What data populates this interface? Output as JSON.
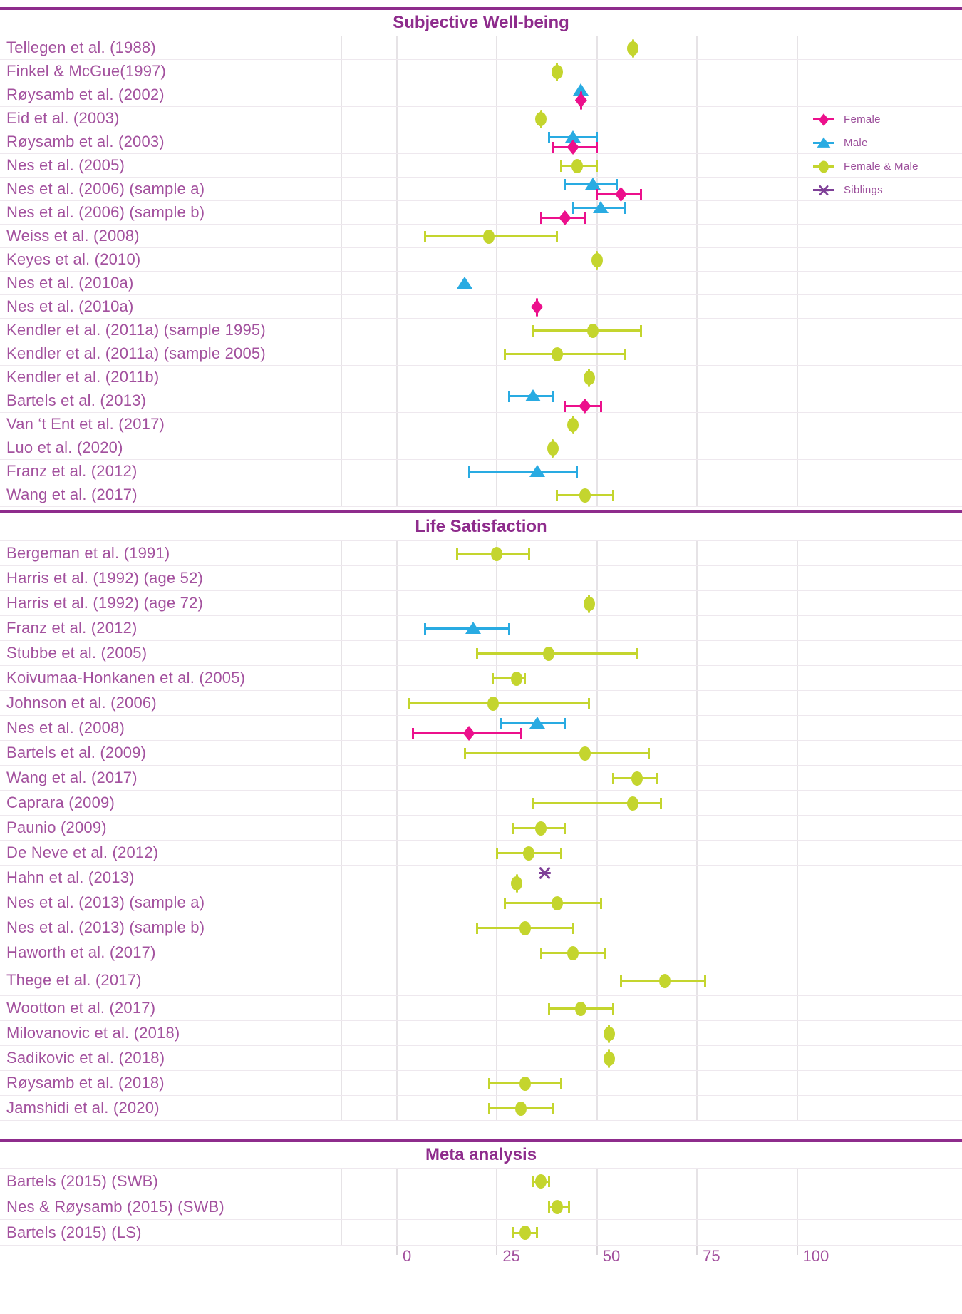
{
  "colors": {
    "female": "#ec108c",
    "male": "#29abe2",
    "both": "#c4d52e",
    "siblings": "#7e3f97",
    "header_purple": "#8e2c8c",
    "label_purple": "#a3519e",
    "gridline_gray": "#e6e3e6"
  },
  "legend": {
    "items": [
      {
        "label": "Female",
        "g": "f"
      },
      {
        "label": "Male",
        "g": "m"
      },
      {
        "label": "Female & Male",
        "g": "fm"
      },
      {
        "label": "Siblings",
        "g": "s"
      }
    ]
  },
  "chart_data": {
    "type": "scatter",
    "subtype": "forest-plot",
    "xlabel": "",
    "ylabel": "",
    "xlim": [
      0,
      100
    ],
    "x_ticks": [
      0,
      25,
      50,
      75,
      100
    ],
    "grid": true,
    "legend_position": "top-right",
    "groups": {
      "f": "Female",
      "m": "Male",
      "fm": "Female & Male",
      "s": "Siblings"
    },
    "sections": [
      {
        "title": "Subjective Well-being",
        "rows": [
          {
            "label": "Tellegen et al. (1988)",
            "markers": [
              {
                "g": "fm",
                "v": 59
              }
            ]
          },
          {
            "label": "Finkel & McGue(1997)",
            "markers": [
              {
                "g": "fm",
                "v": 40
              }
            ]
          },
          {
            "label": "Røysamb et al. (2002)",
            "markers": [
              {
                "g": "m",
                "v": 46
              },
              {
                "g": "f",
                "v": 46
              }
            ]
          },
          {
            "label": "Eid et al. (2003)",
            "markers": [
              {
                "g": "fm",
                "v": 36
              }
            ]
          },
          {
            "label": "Røysamb et al. (2003)",
            "markers": [
              {
                "g": "m",
                "v": 44,
                "lo": 38,
                "hi": 50
              },
              {
                "g": "f",
                "v": 44,
                "lo": 39,
                "hi": 50
              }
            ]
          },
          {
            "label": "Nes et al. (2005)",
            "markers": [
              {
                "g": "fm",
                "v": 45,
                "lo": 41,
                "hi": 50
              }
            ]
          },
          {
            "label": "Nes et al. (2006) (sample a)",
            "markers": [
              {
                "g": "m",
                "v": 49,
                "lo": 42,
                "hi": 55
              },
              {
                "g": "f",
                "v": 56,
                "lo": 50,
                "hi": 61
              }
            ]
          },
          {
            "label": "Nes et al. (2006) (sample b)",
            "markers": [
              {
                "g": "m",
                "v": 51,
                "lo": 44,
                "hi": 57
              },
              {
                "g": "f",
                "v": 42,
                "lo": 36,
                "hi": 47
              }
            ]
          },
          {
            "label": "Weiss et al. (2008)",
            "markers": [
              {
                "g": "fm",
                "v": 23,
                "lo": 7,
                "hi": 40
              }
            ]
          },
          {
            "label": "Keyes et al. (2010)",
            "markers": [
              {
                "g": "fm",
                "v": 50
              }
            ]
          },
          {
            "label": "Nes et al. (2010a)",
            "markers": [
              {
                "g": "m",
                "v": 17
              }
            ]
          },
          {
            "label": "Nes et al. (2010a)",
            "markers": [
              {
                "g": "f",
                "v": 35
              }
            ]
          },
          {
            "label": "Kendler et al. (2011a) (sample 1995)",
            "markers": [
              {
                "g": "fm",
                "v": 49,
                "lo": 34,
                "hi": 61
              }
            ]
          },
          {
            "label": "Kendler et al. (2011a) (sample 2005)",
            "markers": [
              {
                "g": "fm",
                "v": 40,
                "lo": 27,
                "hi": 57
              }
            ]
          },
          {
            "label": "Kendler et al. (2011b)",
            "markers": [
              {
                "g": "fm",
                "v": 48
              }
            ]
          },
          {
            "label": "Bartels et al. (2013)",
            "markers": [
              {
                "g": "m",
                "v": 34,
                "lo": 28,
                "hi": 39
              },
              {
                "g": "f",
                "v": 47,
                "lo": 42,
                "hi": 51
              }
            ]
          },
          {
            "label": "Van ‘t Ent et al. (2017)",
            "markers": [
              {
                "g": "fm",
                "v": 44
              }
            ]
          },
          {
            "label": "Luo et al. (2020)",
            "markers": [
              {
                "g": "fm",
                "v": 39
              }
            ]
          },
          {
            "label": "Franz et al. (2012)",
            "markers": [
              {
                "g": "m",
                "v": 35,
                "lo": 18,
                "hi": 45
              }
            ]
          },
          {
            "label": "Wang et al. (2017)",
            "markers": [
              {
                "g": "fm",
                "v": 47,
                "lo": 40,
                "hi": 54
              }
            ]
          }
        ]
      },
      {
        "title": "Life Satisfaction",
        "rows": [
          {
            "label": "Bergeman et al. (1991)",
            "markers": [
              {
                "g": "fm",
                "v": 25,
                "lo": 15,
                "hi": 33
              }
            ]
          },
          {
            "label": "Harris et al. (1992) (age 52)",
            "markers": []
          },
          {
            "label": "Harris et al. (1992) (age 72)",
            "markers": [
              {
                "g": "fm",
                "v": 48
              }
            ]
          },
          {
            "label": "Franz et al. (2012)",
            "markers": [
              {
                "g": "m",
                "v": 19,
                "lo": 7,
                "hi": 28
              }
            ]
          },
          {
            "label": "Stubbe et al. (2005)",
            "markers": [
              {
                "g": "fm",
                "v": 38,
                "lo": 20,
                "hi": 60
              }
            ]
          },
          {
            "label": "Koivumaa-Honkanen et al. (2005)",
            "markers": [
              {
                "g": "fm",
                "v": 30,
                "lo": 24,
                "hi": 32
              }
            ]
          },
          {
            "label": "Johnson et al. (2006)",
            "markers": [
              {
                "g": "fm",
                "v": 24,
                "lo": 3,
                "hi": 48
              }
            ]
          },
          {
            "label": "Nes et al. (2008)",
            "markers": [
              {
                "g": "m",
                "v": 35,
                "lo": 26,
                "hi": 42
              },
              {
                "g": "f",
                "v": 18,
                "lo": 4,
                "hi": 31
              }
            ]
          },
          {
            "label": "Bartels et al. (2009)",
            "markers": [
              {
                "g": "fm",
                "v": 47,
                "lo": 17,
                "hi": 63
              }
            ]
          },
          {
            "label": "Wang et al. (2017)",
            "markers": [
              {
                "g": "fm",
                "v": 60,
                "lo": 54,
                "hi": 65
              }
            ]
          },
          {
            "label": "Caprara (2009)",
            "markers": [
              {
                "g": "fm",
                "v": 59,
                "lo": 34,
                "hi": 66
              }
            ]
          },
          {
            "label": "Paunio (2009)",
            "markers": [
              {
                "g": "fm",
                "v": 36,
                "lo": 29,
                "hi": 42
              }
            ]
          },
          {
            "label": "De Neve et al. (2012)",
            "markers": [
              {
                "g": "fm",
                "v": 33,
                "lo": 25,
                "hi": 41
              }
            ]
          },
          {
            "label": "Hahn et al. (2013)",
            "markers": [
              {
                "g": "s",
                "v": 37
              },
              {
                "g": "fm",
                "v": 30
              }
            ]
          },
          {
            "label": "Nes et al. (2013) (sample a)",
            "markers": [
              {
                "g": "fm",
                "v": 40,
                "lo": 27,
                "hi": 51
              }
            ]
          },
          {
            "label": "Nes et al. (2013) (sample b)",
            "markers": [
              {
                "g": "fm",
                "v": 32,
                "lo": 20,
                "hi": 44
              }
            ]
          },
          {
            "label": "Haworth et al. (2017)",
            "markers": [
              {
                "g": "fm",
                "v": 44,
                "lo": 36,
                "hi": 52
              }
            ]
          },
          {
            "label": "Thege et al. (2017)",
            "markers": [
              {
                "g": "fm",
                "v": 67,
                "lo": 56,
                "hi": 77
              }
            ],
            "tall": true
          },
          {
            "label": "Wootton et al. (2017)",
            "markers": [
              {
                "g": "fm",
                "v": 46,
                "lo": 38,
                "hi": 54
              }
            ]
          },
          {
            "label": "Milovanovic et al. (2018)",
            "markers": [
              {
                "g": "fm",
                "v": 53
              }
            ]
          },
          {
            "label": "Sadikovic et al. (2018)",
            "markers": [
              {
                "g": "fm",
                "v": 53
              }
            ]
          },
          {
            "label": "Røysamb et al. (2018)",
            "markers": [
              {
                "g": "fm",
                "v": 32,
                "lo": 23,
                "hi": 41
              }
            ]
          },
          {
            "label": "Jamshidi et al. (2020)",
            "markers": [
              {
                "g": "fm",
                "v": 31,
                "lo": 23,
                "hi": 39
              }
            ]
          }
        ]
      },
      {
        "title": "Meta analysis",
        "rows": [
          {
            "label": "Bartels (2015) (SWB)",
            "markers": [
              {
                "g": "fm",
                "v": 36,
                "lo": 34,
                "hi": 38
              }
            ]
          },
          {
            "label": "Nes & Røysamb (2015) (SWB)",
            "markers": [
              {
                "g": "fm",
                "v": 40,
                "lo": 38,
                "hi": 43
              }
            ]
          },
          {
            "label": "Bartels (2015) (LS)",
            "markers": [
              {
                "g": "fm",
                "v": 32,
                "lo": 29,
                "hi": 35
              }
            ]
          }
        ]
      }
    ],
    "axis_tick_labels": [
      "0",
      "25",
      "50",
      "75",
      "100"
    ]
  }
}
